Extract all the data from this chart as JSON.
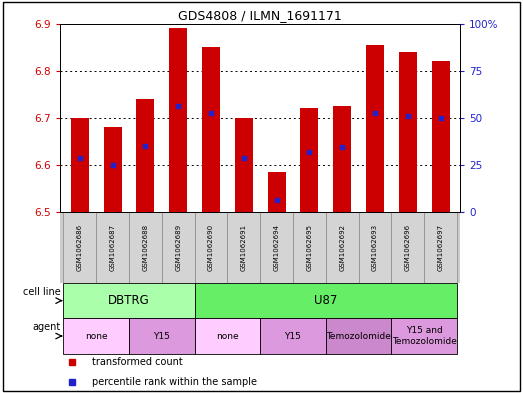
{
  "title": "GDS4808 / ILMN_1691171",
  "samples": [
    "GSM1062686",
    "GSM1062687",
    "GSM1062688",
    "GSM1062689",
    "GSM1062690",
    "GSM1062691",
    "GSM1062694",
    "GSM1062695",
    "GSM1062692",
    "GSM1062693",
    "GSM1062696",
    "GSM1062697"
  ],
  "bar_values": [
    6.7,
    6.68,
    6.74,
    6.89,
    6.85,
    6.7,
    6.585,
    6.72,
    6.725,
    6.855,
    6.84,
    6.82
  ],
  "percentile_values": [
    6.615,
    6.6,
    6.64,
    6.725,
    6.71,
    6.615,
    6.525,
    6.628,
    6.638,
    6.71,
    6.703,
    6.7
  ],
  "ymin": 6.5,
  "ymax": 6.9,
  "yticks": [
    6.5,
    6.6,
    6.7,
    6.8,
    6.9
  ],
  "right_yticks": [
    0,
    25,
    50,
    75,
    100
  ],
  "bar_color": "#cc0000",
  "dot_color": "#2222cc",
  "bar_width": 0.55,
  "cell_line_groups": [
    {
      "label": "DBTRG",
      "start": 0,
      "end": 3,
      "color": "#aaffaa"
    },
    {
      "label": "U87",
      "start": 4,
      "end": 11,
      "color": "#66ee66"
    }
  ],
  "agent_groups": [
    {
      "label": "none",
      "start": 0,
      "end": 1,
      "color": "#ffccff"
    },
    {
      "label": "Y15",
      "start": 2,
      "end": 3,
      "color": "#dd99dd"
    },
    {
      "label": "none",
      "start": 4,
      "end": 5,
      "color": "#ffccff"
    },
    {
      "label": "Y15",
      "start": 6,
      "end": 7,
      "color": "#dd99dd"
    },
    {
      "label": "Temozolomide",
      "start": 8,
      "end": 9,
      "color": "#cc88cc"
    },
    {
      "label": "Y15 and\nTemozolomide",
      "start": 10,
      "end": 11,
      "color": "#dd99dd"
    }
  ],
  "legend_items": [
    {
      "label": "transformed count",
      "color": "#cc0000"
    },
    {
      "label": "percentile rank within the sample",
      "color": "#2222cc"
    }
  ],
  "tick_color_left": "#cc0000",
  "tick_color_right": "#2222cc"
}
